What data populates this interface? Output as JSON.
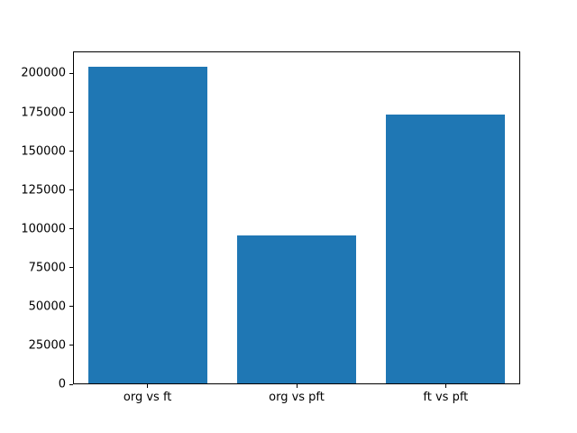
{
  "figure": {
    "background_color": "#ffffff",
    "bar_color": "#1f77b4",
    "axis_color": "#000000",
    "text_color": "#000000"
  },
  "chart_data": {
    "type": "bar",
    "categories": [
      "org vs ft",
      "org vs pft",
      "ft vs pft"
    ],
    "values": [
      204000,
      95000,
      173000
    ],
    "title": "",
    "xlabel": "",
    "ylabel": "",
    "ylim": [
      0,
      214200
    ],
    "yticks": [
      0,
      25000,
      50000,
      75000,
      100000,
      125000,
      150000,
      175000,
      200000
    ],
    "ytick_labels": [
      "0",
      "25000",
      "50000",
      "75000",
      "100000",
      "125000",
      "150000",
      "175000",
      "200000"
    ],
    "bar_width_fraction": 0.8,
    "grid": false,
    "legend": null
  }
}
